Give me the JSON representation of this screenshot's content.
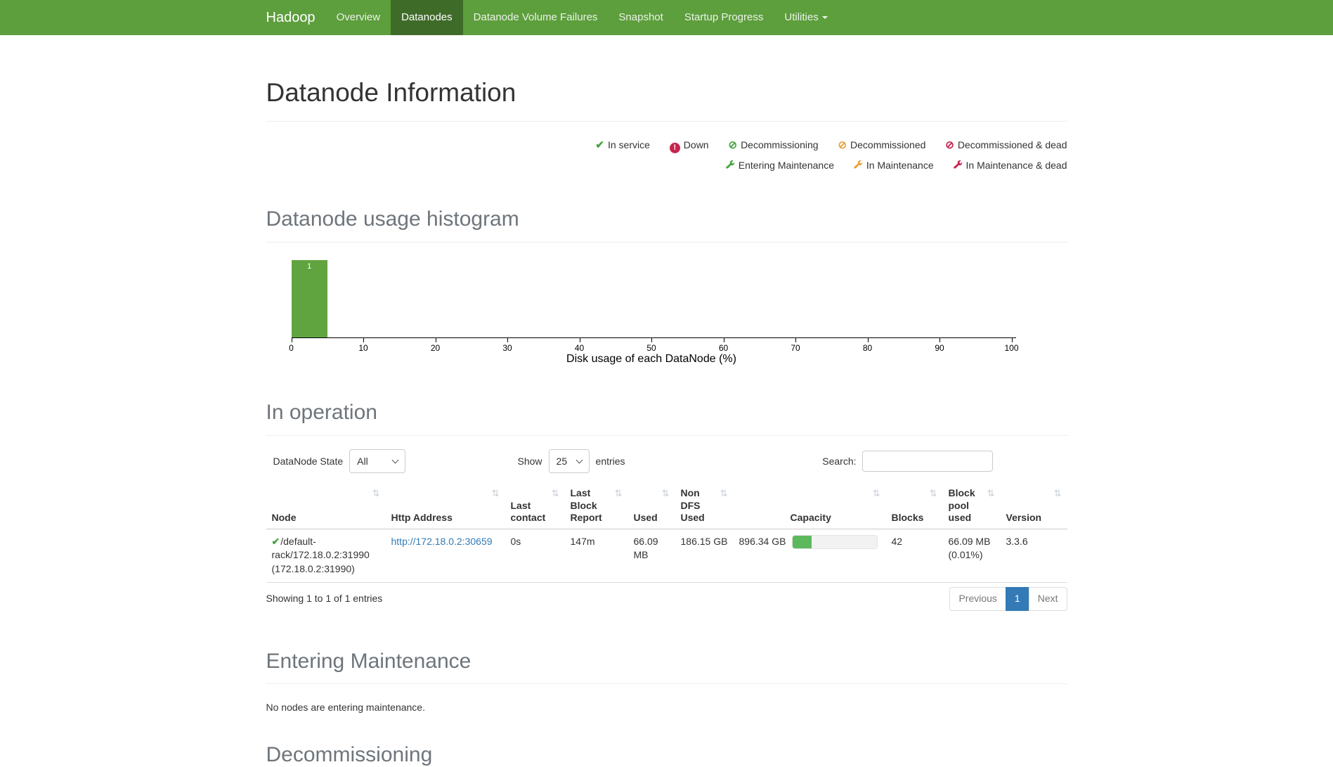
{
  "navbar": {
    "brand": "Hadoop",
    "items": [
      {
        "label": "Overview",
        "active": false
      },
      {
        "label": "Datanodes",
        "active": true
      },
      {
        "label": "Datanode Volume Failures",
        "active": false
      },
      {
        "label": "Snapshot",
        "active": false
      },
      {
        "label": "Startup Progress",
        "active": false
      },
      {
        "label": "Utilities",
        "active": false,
        "dropdown": true
      }
    ]
  },
  "page_title": "Datanode Information",
  "legend": {
    "row1": [
      {
        "icon": "check",
        "color": "#47a43e",
        "label": "In service"
      },
      {
        "icon": "exclamation-circle",
        "color": "#c7254e",
        "label": "Down"
      },
      {
        "icon": "ban-circle",
        "color": "#47a43e",
        "label": "Decommissioning"
      },
      {
        "icon": "ban-circle",
        "color": "#e9a23d",
        "label": "Decommissioned"
      },
      {
        "icon": "ban-circle",
        "color": "#c7254e",
        "label": "Decommissioned & dead"
      }
    ],
    "row2": [
      {
        "icon": "wrench",
        "color": "#47a43e",
        "label": "Entering Maintenance"
      },
      {
        "icon": "wrench",
        "color": "#e9a23d",
        "label": "In Maintenance"
      },
      {
        "icon": "wrench",
        "color": "#c7254e",
        "label": "In Maintenance & dead"
      }
    ]
  },
  "sections": {
    "histogram_title": "Datanode usage histogram",
    "in_operation_title": "In operation",
    "entering_maintenance_title": "Entering Maintenance",
    "entering_maintenance_empty": "No nodes are entering maintenance.",
    "decommissioning_title": "Decommissioning"
  },
  "chart_data": {
    "type": "bar",
    "title": "Datanode usage histogram",
    "xlabel": "Disk usage of each DataNode (%)",
    "ylabel": "",
    "xlim": [
      0,
      100
    ],
    "x_ticks": [
      0,
      10,
      20,
      30,
      40,
      50,
      60,
      70,
      80,
      90,
      100
    ],
    "bins": [
      {
        "x_range": [
          0,
          5
        ],
        "count": 1
      }
    ],
    "grid": false,
    "bar_color": "#60a440"
  },
  "controls": {
    "state_filter_label": "DataNode State",
    "state_filter_value": "All",
    "show_label": "Show",
    "show_value": "25",
    "entries_label": "entries",
    "search_label": "Search:"
  },
  "table": {
    "headers": [
      "Node",
      "Http Address",
      "Last contact",
      "Last Block Report",
      "Used",
      "Non DFS Used",
      "Capacity",
      "Blocks",
      "Block pool used",
      "Version"
    ],
    "rows": [
      {
        "node": "/default-rack/172.18.0.2:31990 (172.18.0.2:31990)",
        "node_state_icon": "check",
        "http_address": "http://172.18.0.2:30659",
        "last_contact": "0s",
        "last_block_report": "147m",
        "used": "66.09 MB",
        "non_dfs_used": "186.15 GB",
        "capacity": "896.34 GB",
        "capacity_bar_fill_percent": 22,
        "blocks": "42",
        "block_pool_used": "66.09 MB (0.01%)",
        "version": "3.3.6"
      }
    ],
    "info": "Showing 1 to 1 of 1 entries",
    "pagination": {
      "previous": "Previous",
      "page": "1",
      "next": "Next"
    }
  },
  "colors": {
    "navbar_bg": "#5d9e3d",
    "navbar_active_bg": "#3f6b29",
    "link": "#337ab7",
    "icon_green": "#47a43e",
    "icon_orange": "#e9a23d",
    "icon_red": "#c7254e",
    "histogram_bar": "#60a440",
    "progress_fill": "#5cb85c",
    "pagination_active_bg": "#337ab7"
  }
}
